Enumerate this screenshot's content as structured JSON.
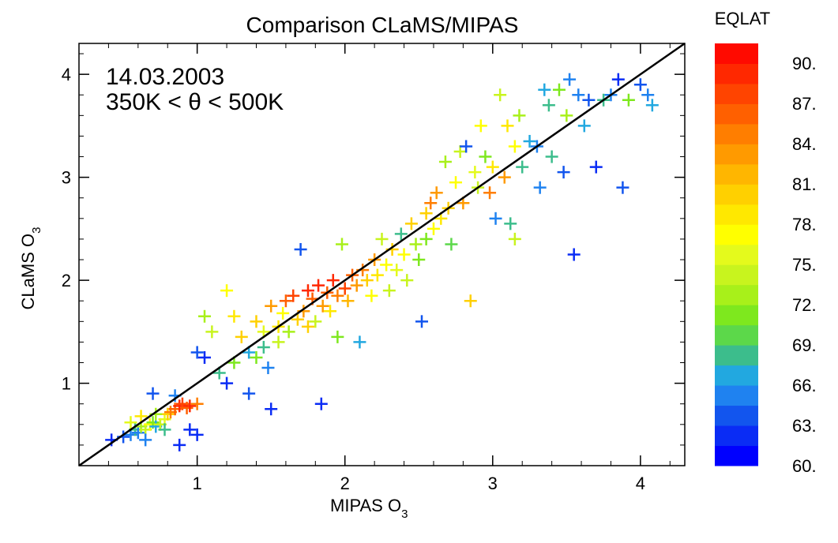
{
  "chart_data": {
    "type": "scatter",
    "title": "Comparison CLaMS/MIPAS",
    "xlabel": "MIPAS O",
    "xlabel_sub": "3",
    "ylabel": "CLaMS O",
    "ylabel_sub": "3",
    "annotation": [
      "14.03.2003",
      "350K < θ < 500K"
    ],
    "xlim": [
      0.2,
      4.3
    ],
    "ylim": [
      0.2,
      4.3
    ],
    "xticks": [
      1,
      2,
      3,
      4
    ],
    "yticks": [
      1,
      2,
      3,
      4
    ],
    "grid": false,
    "reference_line": "y = x",
    "marker": "plus",
    "color_by": "EQLAT",
    "colorbar": {
      "title": "EQLAT",
      "range": [
        60,
        90
      ],
      "tick_labels": [
        "90.",
        "87.",
        "84.",
        "81.",
        "78.",
        "75.",
        "72.",
        "69.",
        "66.",
        "63.",
        "60."
      ],
      "colors": [
        "#0000ff",
        "#0a2cf5",
        "#1255ee",
        "#1f82f0",
        "#22a8e0",
        "#3cbd8c",
        "#5cd84a",
        "#7ee81e",
        "#a8f01a",
        "#c8f41e",
        "#e4fa1c",
        "#ffff00",
        "#ffe800",
        "#ffd000",
        "#ffb600",
        "#ff9a00",
        "#ff7e00",
        "#ff6000",
        "#ff4400",
        "#ff2800",
        "#ff0a00"
      ]
    },
    "points": [
      [
        0.42,
        0.45,
        62
      ],
      [
        0.5,
        0.48,
        63
      ],
      [
        0.55,
        0.5,
        65
      ],
      [
        0.58,
        0.55,
        68
      ],
      [
        0.6,
        0.52,
        64
      ],
      [
        0.62,
        0.58,
        72
      ],
      [
        0.65,
        0.55,
        74
      ],
      [
        0.68,
        0.6,
        76
      ],
      [
        0.7,
        0.62,
        70
      ],
      [
        0.72,
        0.58,
        66
      ],
      [
        0.75,
        0.6,
        73
      ],
      [
        0.78,
        0.65,
        75
      ],
      [
        0.8,
        0.7,
        80
      ],
      [
        0.82,
        0.72,
        84
      ],
      [
        0.85,
        0.75,
        86
      ],
      [
        0.88,
        0.78,
        88
      ],
      [
        0.9,
        0.8,
        87
      ],
      [
        0.93,
        0.76,
        85
      ],
      [
        0.95,
        0.78,
        89
      ],
      [
        1.0,
        0.8,
        84
      ],
      [
        0.7,
        0.9,
        63
      ],
      [
        0.85,
        0.88,
        64
      ],
      [
        0.95,
        0.55,
        62
      ],
      [
        1.0,
        0.5,
        61
      ],
      [
        0.88,
        0.4,
        62
      ],
      [
        0.65,
        0.45,
        64
      ],
      [
        0.55,
        0.62,
        75
      ],
      [
        0.62,
        0.68,
        78
      ],
      [
        0.72,
        0.7,
        72
      ],
      [
        0.78,
        0.55,
        67
      ],
      [
        1.0,
        1.3,
        63
      ],
      [
        1.05,
        1.25,
        62
      ],
      [
        1.05,
        1.65,
        72
      ],
      [
        1.1,
        1.5,
        74
      ],
      [
        1.15,
        1.1,
        68
      ],
      [
        1.2,
        1.0,
        62
      ],
      [
        1.2,
        1.9,
        76
      ],
      [
        1.25,
        1.2,
        70
      ],
      [
        1.25,
        1.65,
        78
      ],
      [
        1.3,
        1.45,
        79
      ],
      [
        1.35,
        1.3,
        66
      ],
      [
        1.35,
        0.9,
        63
      ],
      [
        1.4,
        1.6,
        80
      ],
      [
        1.4,
        1.25,
        71
      ],
      [
        1.45,
        1.5,
        75
      ],
      [
        1.45,
        1.35,
        67
      ],
      [
        1.48,
        1.15,
        64
      ],
      [
        1.5,
        0.75,
        62
      ],
      [
        1.5,
        1.75,
        82
      ],
      [
        1.55,
        1.55,
        78
      ],
      [
        1.55,
        1.4,
        73
      ],
      [
        1.58,
        1.68,
        77
      ],
      [
        1.6,
        1.8,
        85
      ],
      [
        1.62,
        1.5,
        72
      ],
      [
        1.65,
        1.85,
        87
      ],
      [
        1.68,
        1.62,
        80
      ],
      [
        1.7,
        2.3,
        63
      ],
      [
        1.72,
        1.7,
        83
      ],
      [
        1.75,
        1.9,
        88
      ],
      [
        1.75,
        1.55,
        79
      ],
      [
        1.78,
        1.82,
        86
      ],
      [
        1.8,
        1.6,
        74
      ],
      [
        1.82,
        1.95,
        89
      ],
      [
        1.84,
        0.8,
        62
      ],
      [
        1.85,
        1.75,
        82
      ],
      [
        1.88,
        1.88,
        85
      ],
      [
        1.9,
        1.7,
        78
      ],
      [
        1.92,
        2.0,
        88
      ],
      [
        1.95,
        1.85,
        84
      ],
      [
        1.95,
        1.45,
        70
      ],
      [
        1.98,
        2.35,
        72
      ],
      [
        2.0,
        1.92,
        87
      ],
      [
        2.02,
        1.8,
        81
      ],
      [
        2.05,
        2.05,
        86
      ],
      [
        2.08,
        1.95,
        83
      ],
      [
        2.1,
        1.4,
        66
      ],
      [
        2.12,
        2.1,
        84
      ],
      [
        2.15,
        2.0,
        80
      ],
      [
        2.18,
        1.85,
        77
      ],
      [
        2.2,
        2.2,
        82
      ],
      [
        2.22,
        2.05,
        78
      ],
      [
        2.25,
        2.4,
        73
      ],
      [
        2.28,
        2.15,
        76
      ],
      [
        2.3,
        1.9,
        74
      ],
      [
        2.32,
        2.3,
        80
      ],
      [
        2.35,
        2.1,
        75
      ],
      [
        2.38,
        2.45,
        68
      ],
      [
        2.4,
        2.25,
        77
      ],
      [
        2.42,
        2.0,
        73
      ],
      [
        2.45,
        2.55,
        80
      ],
      [
        2.48,
        2.35,
        72
      ],
      [
        2.5,
        2.2,
        70
      ],
      [
        2.52,
        1.6,
        63
      ],
      [
        2.55,
        2.65,
        79
      ],
      [
        2.55,
        2.4,
        71
      ],
      [
        2.58,
        2.75,
        84
      ],
      [
        2.6,
        2.5,
        76
      ],
      [
        2.62,
        2.85,
        82
      ],
      [
        2.65,
        2.6,
        78
      ],
      [
        2.68,
        3.15,
        72
      ],
      [
        2.7,
        2.7,
        80
      ],
      [
        2.72,
        2.35,
        69
      ],
      [
        2.75,
        2.95,
        77
      ],
      [
        2.78,
        3.25,
        74
      ],
      [
        2.8,
        2.75,
        83
      ],
      [
        2.82,
        3.3,
        63
      ],
      [
        2.85,
        1.8,
        80
      ],
      [
        2.88,
        3.05,
        75
      ],
      [
        2.9,
        2.9,
        73
      ],
      [
        2.92,
        3.5,
        76
      ],
      [
        2.95,
        3.2,
        71
      ],
      [
        2.98,
        2.85,
        84
      ],
      [
        3.0,
        3.1,
        78
      ],
      [
        3.02,
        2.6,
        64
      ],
      [
        3.05,
        3.8,
        74
      ],
      [
        3.08,
        3.0,
        82
      ],
      [
        3.1,
        3.5,
        78
      ],
      [
        3.12,
        2.55,
        67
      ],
      [
        3.15,
        2.4,
        73
      ],
      [
        3.15,
        3.3,
        77
      ],
      [
        3.18,
        3.6,
        72
      ],
      [
        3.2,
        3.1,
        68
      ],
      [
        3.25,
        3.35,
        66
      ],
      [
        3.3,
        3.3,
        65
      ],
      [
        3.32,
        2.9,
        64
      ],
      [
        3.35,
        3.85,
        66
      ],
      [
        3.38,
        3.7,
        67
      ],
      [
        3.4,
        3.2,
        68
      ],
      [
        3.45,
        3.85,
        70
      ],
      [
        3.48,
        3.05,
        63
      ],
      [
        3.5,
        3.6,
        72
      ],
      [
        3.52,
        3.95,
        64
      ],
      [
        3.55,
        2.25,
        62
      ],
      [
        3.58,
        3.8,
        65
      ],
      [
        3.62,
        3.5,
        66
      ],
      [
        3.65,
        3.75,
        63
      ],
      [
        3.7,
        3.1,
        62
      ],
      [
        3.75,
        3.75,
        68
      ],
      [
        3.8,
        3.8,
        64
      ],
      [
        3.85,
        3.95,
        62
      ],
      [
        3.88,
        2.9,
        63
      ],
      [
        3.92,
        3.75,
        71
      ],
      [
        4.0,
        3.9,
        63
      ],
      [
        4.05,
        3.8,
        64
      ],
      [
        4.08,
        3.7,
        66
      ]
    ]
  }
}
